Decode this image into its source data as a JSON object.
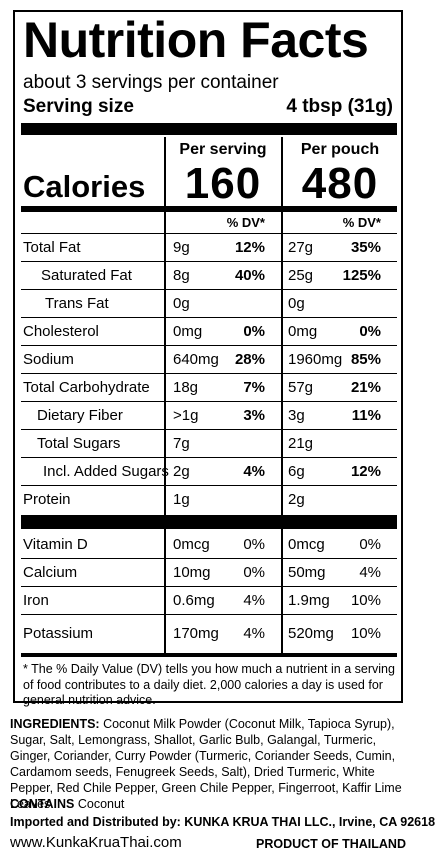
{
  "title": "Nutrition Facts",
  "servings_per_container": "about 3 servings per container",
  "serving_size_label": "Serving size",
  "serving_size_value": "4 tbsp (31g)",
  "per_serving_label": "Per serving",
  "per_pouch_label": "Per pouch",
  "calories_label": "Calories",
  "calories_per_serving": "160",
  "calories_per_pouch": "480",
  "dv_label": "% DV*",
  "nutrients": [
    {
      "name": "Total Fat",
      "amount1": "9g",
      "pct1": "12%",
      "amount2": "27g",
      "pct2": "35%"
    },
    {
      "name": "Saturated Fat",
      "amount1": "8g",
      "pct1": "40%",
      "amount2": "25g",
      "pct2": "125%"
    },
    {
      "name": "Trans Fat",
      "amount1": "0g",
      "pct1": "",
      "amount2": "0g",
      "pct2": ""
    },
    {
      "name": "Cholesterol",
      "amount1": "0mg",
      "pct1": "0%",
      "amount2": "0mg",
      "pct2": "0%"
    },
    {
      "name": "Sodium",
      "amount1": "640mg",
      "pct1": "28%",
      "amount2": "1960mg",
      "pct2": "85%"
    },
    {
      "name": "Total Carbohydrate",
      "amount1": "18g",
      "pct1": "7%",
      "amount2": "57g",
      "pct2": "21%"
    },
    {
      "name": "Dietary Fiber",
      "amount1": ">1g",
      "pct1": "3%",
      "amount2": "3g",
      "pct2": "11%"
    },
    {
      "name": "Total Sugars",
      "amount1": "7g",
      "pct1": "",
      "amount2": "21g",
      "pct2": ""
    },
    {
      "name": "Incl. Added Sugars",
      "amount1": "2g",
      "pct1": "4%",
      "amount2": "6g",
      "pct2": "12%"
    },
    {
      "name": "Protein",
      "amount1": "1g",
      "pct1": "",
      "amount2": "2g",
      "pct2": ""
    }
  ],
  "vitamins": [
    {
      "name": "Vitamin D",
      "amount1": "0mcg",
      "pct1": "0%",
      "amount2": "0mcg",
      "pct2": "0%"
    },
    {
      "name": "Calcium",
      "amount1": "10mg",
      "pct1": "0%",
      "amount2": "50mg",
      "pct2": "4%"
    },
    {
      "name": "Iron",
      "amount1": "0.6mg",
      "pct1": "4%",
      "amount2": "1.9mg",
      "pct2": "10%"
    },
    {
      "name": "Potassium",
      "amount1": "170mg",
      "pct1": "4%",
      "amount2": "520mg",
      "pct2": "10%"
    }
  ],
  "footnote": "* The % Daily Value (DV) tells you how much a nutrient in a serving of food contributes to a daily diet. 2,000 calories a day is used for general nutrition advice.",
  "ingredients_label": "INGREDIENTS:",
  "ingredients_text": "Coconut Milk Powder (Coconut Milk, Tapioca Syrup), Sugar, Salt, Lemongrass, Shallot, Garlic Bulb, Galangal, Turmeric, Ginger, Coriander, Curry Powder (Turmeric, Coriander Seeds, Cumin, Cardamom seeds, Fenugreek Seeds, Salt), Dried Turmeric, White Pepper, Red Chile Pepper, Green Chile Pepper, Fingerroot, Kaffir Lime Leaves",
  "contains_label": "CONTAINS",
  "contains_text": "Coconut",
  "imported_by": "Imported and Distributed by: KUNKA KRUA THAI LLC., Irvine, CA 92618",
  "website": "www.KunkaKruaThai.com",
  "product_of": "PRODUCT OF THAILAND"
}
